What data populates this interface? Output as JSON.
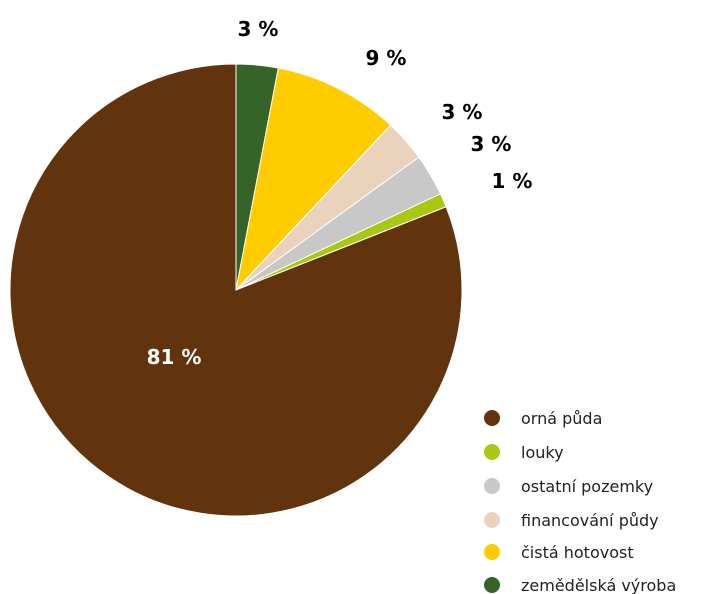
{
  "chart_data": {
    "type": "pie",
    "slices": [
      {
        "label": "orná půda",
        "value": 81,
        "value_label": "81 %",
        "color": "#62340E",
        "label_color": "#ffffff"
      },
      {
        "label": "louky",
        "value": 1,
        "value_label": "1 %",
        "color": "#A9C813",
        "label_color": "#000000"
      },
      {
        "label": "ostatní pozemky",
        "value": 3,
        "value_label": "3 %",
        "color": "#C8C8C8",
        "label_color": "#000000"
      },
      {
        "label": "financování půdy",
        "value": 3,
        "value_label": "3 %",
        "color": "#EBD2BC",
        "label_color": "#000000"
      },
      {
        "label": "čistá hotovost",
        "value": 9,
        "value_label": "9 %",
        "color": "#FFCC00",
        "label_color": "#000000"
      },
      {
        "label": "zemědělská výroba",
        "value": 3,
        "value_label": "3 %",
        "color": "#356328",
        "label_color": "#000000"
      }
    ],
    "legend_order": [
      "orná půda",
      "louky",
      "ostatní pozemky",
      "financování půdy",
      "čistá hotovost",
      "zemědělská výroba"
    ],
    "legend_placement": "bottom-right"
  }
}
